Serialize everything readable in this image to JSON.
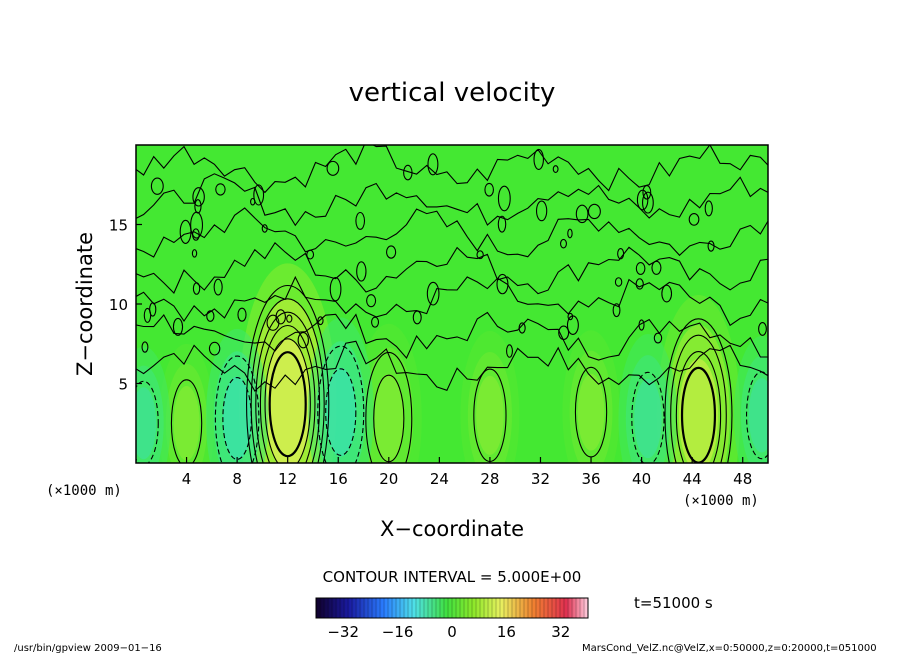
{
  "chart_data": {
    "type": "heatmap",
    "title": "vertical velocity",
    "xlabel": "X−coordinate",
    "ylabel": "Z−coordinate",
    "x_unit_left": "(×1000 m)",
    "x_unit_right": "(×1000 m)",
    "xlim": [
      0,
      50
    ],
    "ylim": [
      0,
      20
    ],
    "x_ticks": [
      4,
      8,
      12,
      16,
      20,
      24,
      28,
      32,
      36,
      40,
      44,
      48
    ],
    "y_ticks": [
      5,
      10,
      15
    ],
    "contour_interval_text": "CONTOUR INTERVAL = 5.000E+00",
    "time_text": "t=51000 s",
    "colorbar": {
      "min": -40,
      "max": 40,
      "ticks": [
        -32,
        -16,
        0,
        16,
        32
      ]
    },
    "features": [
      {
        "x": 12,
        "z": 3.7,
        "peak": 30,
        "kind": "updraft"
      },
      {
        "x": 44.5,
        "z": 3.0,
        "peak": 22,
        "kind": "updraft"
      },
      {
        "x": 20,
        "z": 2.8,
        "peak": 12,
        "kind": "updraft"
      },
      {
        "x": 28,
        "z": 3.0,
        "peak": 8,
        "kind": "updraft"
      },
      {
        "x": 36,
        "z": 3.2,
        "peak": 7,
        "kind": "updraft"
      },
      {
        "x": 4,
        "z": 2.5,
        "peak": 6,
        "kind": "updraft"
      },
      {
        "x": 8,
        "z": 2.8,
        "peak": -10,
        "kind": "downdraft"
      },
      {
        "x": 16.2,
        "z": 3.2,
        "peak": -12,
        "kind": "downdraft"
      },
      {
        "x": 40.5,
        "z": 2.8,
        "peak": -8,
        "kind": "downdraft"
      },
      {
        "x": 49.5,
        "z": 3.0,
        "peak": -6,
        "kind": "downdraft"
      },
      {
        "x": 0.6,
        "z": 2.5,
        "peak": -5,
        "kind": "downdraft"
      }
    ]
  },
  "footer": {
    "left": "/usr/bin/gpview   2009−01−16",
    "right": "MarsCond_VelZ.nc@VelZ,x=0:50000,z=0:20000,t=051000"
  }
}
